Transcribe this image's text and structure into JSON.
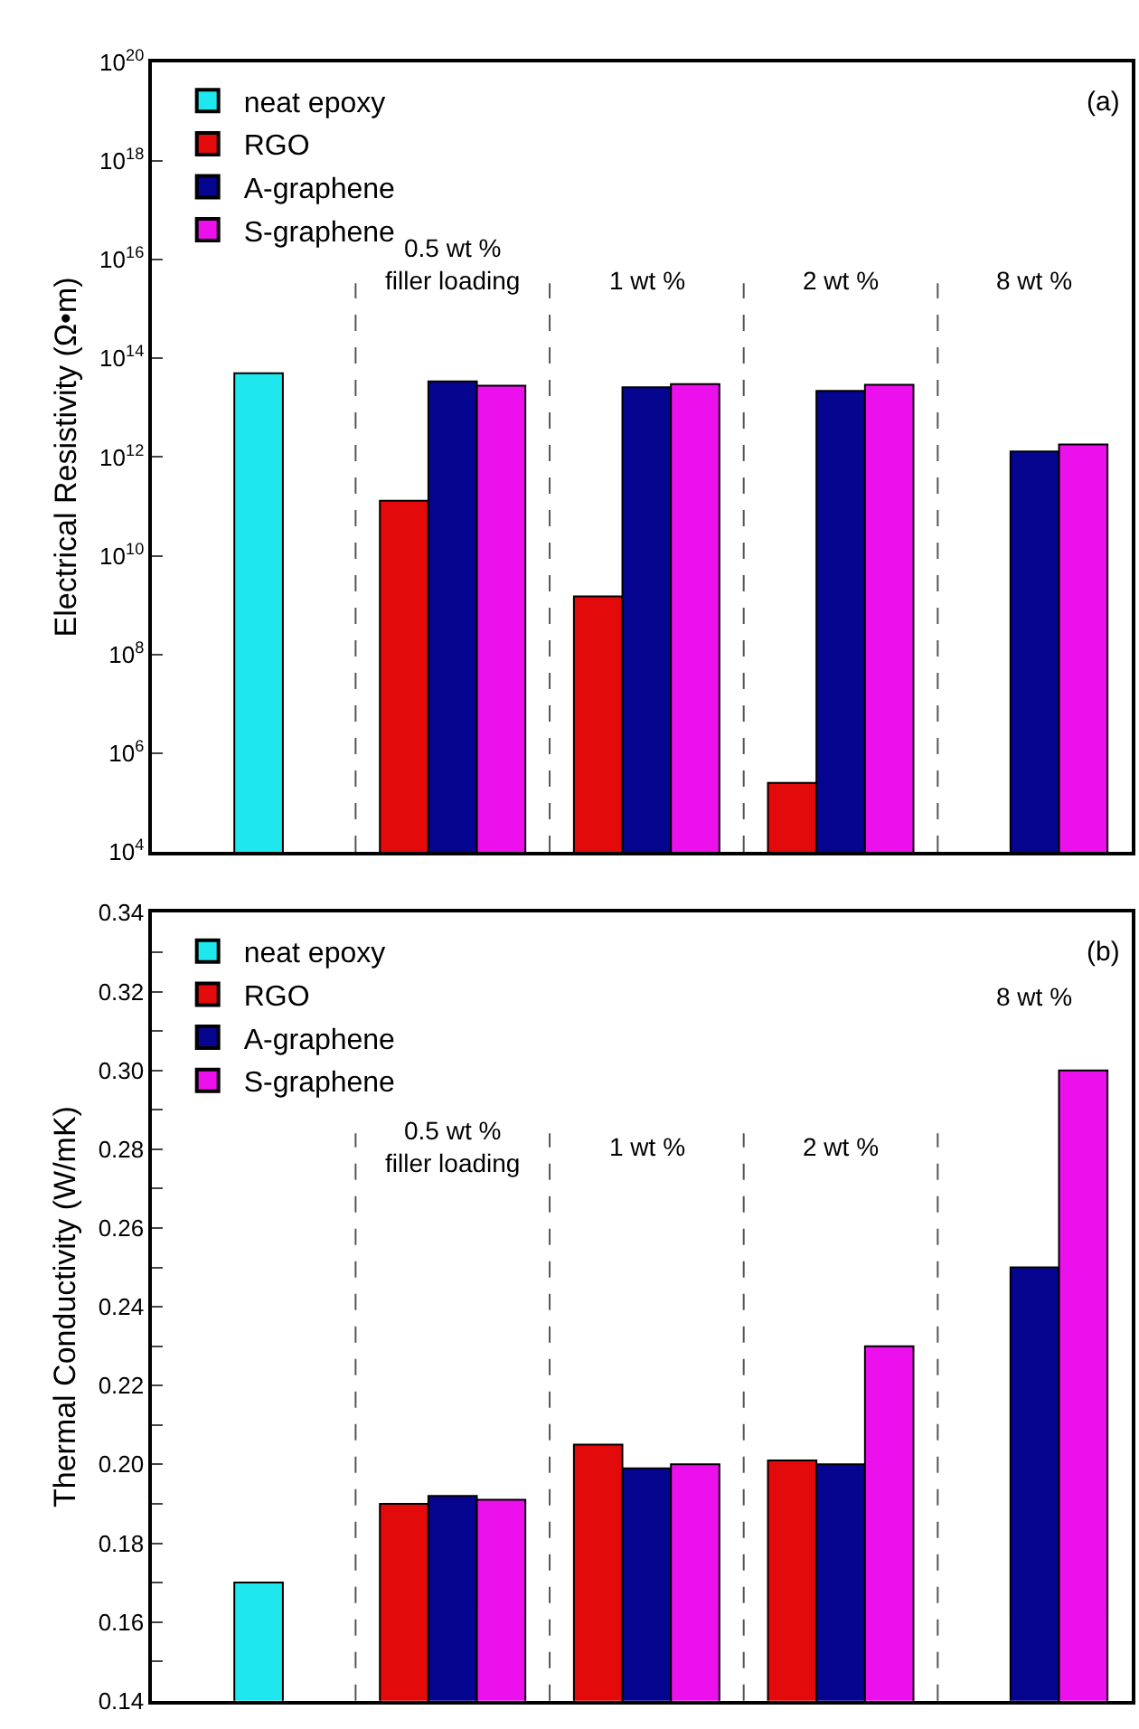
{
  "chart_data": [
    {
      "type": "bar",
      "ylabel": "Electrical Resistivity (Ω•m)",
      "log": true,
      "categories": [
        null,
        null,
        null,
        null,
        null
      ],
      "series": [
        {
          "name": "neat epoxy",
          "color": "#1ee8ee",
          "values": [
            50000000000000.0,
            null,
            null,
            null,
            null
          ]
        },
        {
          "name": "RGO",
          "color": "#e20a0a",
          "values": [
            null,
            130000000000.0,
            1500000000.0,
            250000.0,
            null
          ]
        },
        {
          "name": "A-graphene",
          "color": "#05058f",
          "values": [
            null,
            34000000000000.0,
            26000000000000.0,
            22000000000000.0,
            1300000000000.0
          ]
        },
        {
          "name": "S-graphene",
          "color": "#ec10ec",
          "values": [
            null,
            28000000000000.0,
            30000000000000.0,
            29000000000000.0,
            1800000000000.0
          ]
        }
      ],
      "ylim": [
        10000.0,
        1e+20
      ],
      "yticks": [
        {
          "value": 10000.0,
          "label": "10$^{4}$"
        },
        {
          "value": 1000000.0,
          "label": "10$^{6}$"
        },
        {
          "value": 100000000.0,
          "label": "10$^{8}$"
        },
        {
          "value": 10000000000.0,
          "label": "10$^{10}$"
        },
        {
          "value": 1000000000000.0,
          "label": "10$^{12}$"
        },
        {
          "value": 100000000000000.0,
          "label": "10$^{14}$"
        },
        {
          "value": 1e+16,
          "label": "10$^{16}$"
        },
        {
          "value": 1e+18,
          "label": "10$^{18}$"
        },
        {
          "value": 1e+20,
          "label": "10$^{20}$"
        }
      ],
      "annotations": [
        "(a)",
        "0.5 wt %\nfiller loading",
        "1 wt %",
        "2 wt %",
        "8 wt %"
      ],
      "tick_labels": "y",
      "legend": "top left"
    },
    {
      "type": "bar",
      "ylabel": "Thermal Conductivity (W/mK)",
      "categories": [
        null,
        null,
        null,
        null,
        null
      ],
      "series": [
        {
          "name": "neat epoxy",
          "color": "#1ee8ee",
          "values": [
            0.17,
            null,
            null,
            null,
            null
          ]
        },
        {
          "name": "RGO",
          "color": "#e20a0a",
          "values": [
            null,
            0.19,
            0.205,
            0.201,
            null
          ]
        },
        {
          "name": "A-graphene",
          "color": "#05058f",
          "values": [
            null,
            0.192,
            0.199,
            0.2,
            0.25
          ]
        },
        {
          "name": "S-graphene",
          "color": "#ec10ec",
          "values": [
            null,
            0.191,
            0.2,
            0.23,
            0.3
          ]
        }
      ],
      "ylim": [
        0.14,
        0.34
      ],
      "yticks": [
        0.14,
        {
          "value": 0.15,
          "label": null
        },
        0.16,
        {
          "value": 0.17,
          "label": null
        },
        0.18,
        {
          "value": 0.19,
          "label": null
        },
        {
          "value": 0.2,
          "label": "0.20"
        },
        {
          "value": 0.21,
          "label": null
        },
        0.22,
        {
          "value": 0.23,
          "label": null
        },
        0.24,
        {
          "value": 0.25,
          "label": null
        },
        0.26,
        {
          "value": 0.27,
          "label": null
        },
        0.28,
        {
          "value": 0.29,
          "label": null
        },
        {
          "value": 0.3,
          "label": "0.30"
        },
        {
          "value": 0.31,
          "label": null
        },
        0.32,
        {
          "value": 0.33,
          "label": null
        },
        0.34
      ],
      "annotations": [
        "(b)",
        "0.5 wt %\nfiller loading",
        "1 wt %",
        "2 wt %",
        "8 wt %"
      ],
      "tick_labels": "y",
      "legend": "top left"
    }
  ]
}
